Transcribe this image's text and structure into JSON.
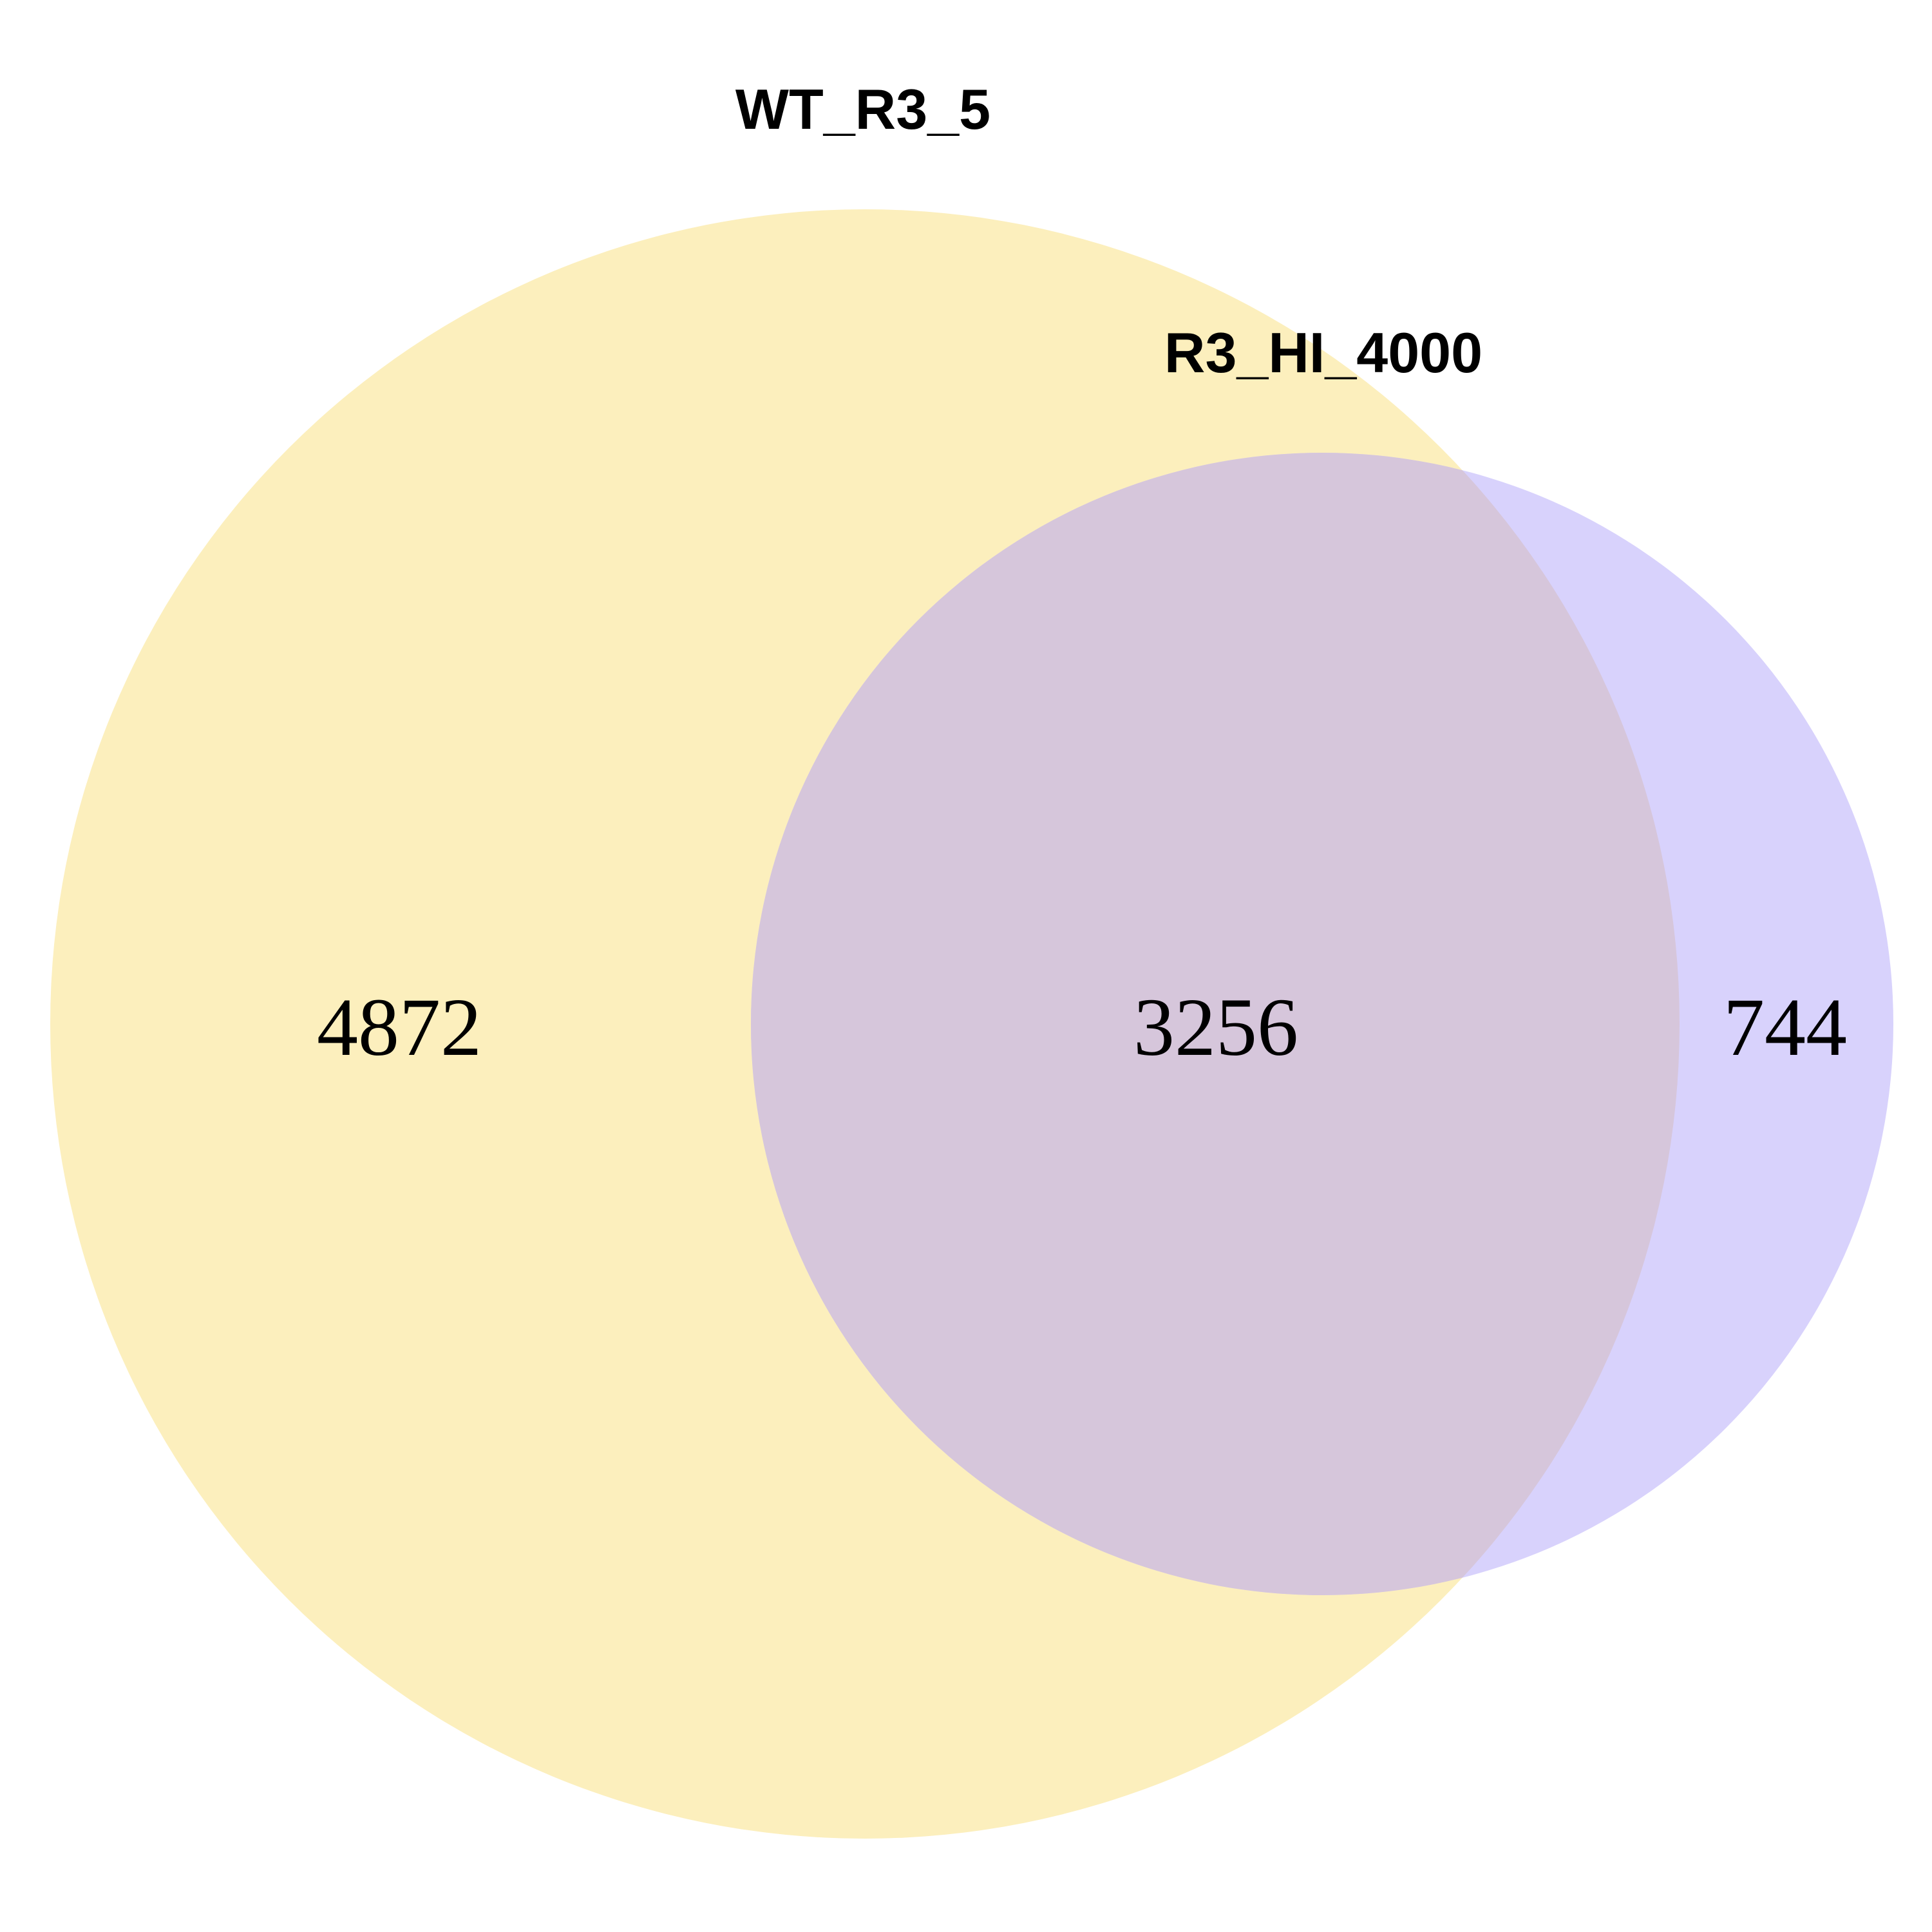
{
  "chart_data": {
    "type": "venn",
    "sets": [
      {
        "name": "WT_R3_5",
        "color": "#fcefbd"
      },
      {
        "name": "R3_HI_4000",
        "color": "#d8d2fc"
      }
    ],
    "regions": {
      "only_a": 4872,
      "intersection": 3256,
      "only_b": 744
    },
    "intersection_color": "#d6c6db"
  }
}
